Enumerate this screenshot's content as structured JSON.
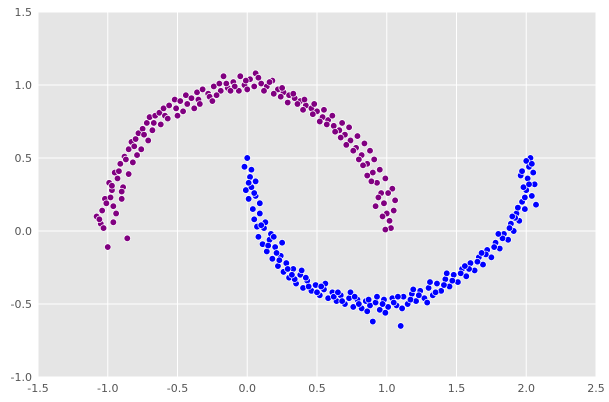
{
  "chart_data": {
    "type": "scatter",
    "title": "",
    "xlabel": "",
    "ylabel": "",
    "xlim": [
      -1.5,
      2.5
    ],
    "ylim": [
      -1.0,
      1.5
    ],
    "grid": true,
    "background": "#e5e5e5",
    "x_ticks": [
      "-1.5",
      "-1.0",
      "-0.5",
      "0.0",
      "0.5",
      "1.0",
      "1.5",
      "2.0",
      "2.5"
    ],
    "y_ticks": [
      "-1.0",
      "-0.5",
      "0.0",
      "0.5",
      "1.0",
      "1.5"
    ],
    "series": [
      {
        "color": "#800080",
        "points": [
          [
            -1.08,
            0.1
          ],
          [
            -1.05,
            0.05
          ],
          [
            -1.04,
            0.14
          ],
          [
            -1.02,
            0.22
          ],
          [
            -1.0,
            -0.11
          ],
          [
            -0.99,
            0.33
          ],
          [
            -0.97,
            0.28
          ],
          [
            -0.96,
            0.17
          ],
          [
            -0.95,
            0.4
          ],
          [
            -0.93,
            0.36
          ],
          [
            -0.91,
            0.46
          ],
          [
            -0.9,
            0.22
          ],
          [
            -0.88,
            0.51
          ],
          [
            -0.86,
            -0.05
          ],
          [
            -0.85,
            0.56
          ],
          [
            -0.83,
            0.61
          ],
          [
            -0.8,
            0.63
          ],
          [
            -0.78,
            0.67
          ],
          [
            -0.75,
            0.7
          ],
          [
            -0.72,
            0.74
          ],
          [
            -0.7,
            0.78
          ],
          [
            -0.66,
            0.79
          ],
          [
            -0.63,
            0.81
          ],
          [
            -0.6,
            0.84
          ],
          [
            -0.56,
            0.86
          ],
          [
            -0.52,
            0.9
          ],
          [
            -0.48,
            0.89
          ],
          [
            -0.44,
            0.93
          ],
          [
            -0.4,
            0.91
          ],
          [
            -0.36,
            0.95
          ],
          [
            -0.32,
            0.97
          ],
          [
            -0.28,
            0.94
          ],
          [
            -0.24,
            0.99
          ],
          [
            -0.2,
            1.01
          ],
          [
            -0.17,
            1.06
          ],
          [
            -0.14,
            0.98
          ],
          [
            -0.1,
            1.02
          ],
          [
            -0.06,
            0.96
          ],
          [
            -0.02,
            1.0
          ],
          [
            0.02,
            1.04
          ],
          [
            0.06,
            1.08
          ],
          [
            0.1,
            1.01
          ],
          [
            0.14,
            0.99
          ],
          [
            0.18,
            1.03
          ],
          [
            0.22,
            0.97
          ],
          [
            0.26,
            0.95
          ],
          [
            0.3,
            0.93
          ],
          [
            0.34,
            0.91
          ],
          [
            0.38,
            0.89
          ],
          [
            0.42,
            0.86
          ],
          [
            0.46,
            0.84
          ],
          [
            0.5,
            0.82
          ],
          [
            0.54,
            0.78
          ],
          [
            0.58,
            0.76
          ],
          [
            0.62,
            0.72
          ],
          [
            0.66,
            0.69
          ],
          [
            0.7,
            0.66
          ],
          [
            0.74,
            0.62
          ],
          [
            0.78,
            0.57
          ],
          [
            0.82,
            0.52
          ],
          [
            0.86,
            0.46
          ],
          [
            0.9,
            0.4
          ],
          [
            0.93,
            0.33
          ],
          [
            0.96,
            0.26
          ],
          [
            0.98,
            0.19
          ],
          [
            1.0,
            0.12
          ],
          [
            1.02,
            0.07
          ],
          [
            1.03,
            0.02
          ],
          [
            1.05,
            0.14
          ],
          [
            1.06,
            0.21
          ],
          [
            1.04,
            0.29
          ],
          [
            0.99,
            0.36
          ],
          [
            0.95,
            0.42
          ],
          [
            0.91,
            0.49
          ],
          [
            0.88,
            0.55
          ],
          [
            0.84,
            0.6
          ],
          [
            0.79,
            0.65
          ],
          [
            0.73,
            0.71
          ],
          [
            0.68,
            0.74
          ],
          [
            0.61,
            0.79
          ],
          [
            0.55,
            0.83
          ],
          [
            0.48,
            0.87
          ],
          [
            0.41,
            0.9
          ],
          [
            0.33,
            0.94
          ],
          [
            0.25,
            0.98
          ],
          [
            0.16,
            1.02
          ],
          [
            0.08,
            1.05
          ],
          [
            -0.01,
            1.03
          ],
          [
            -0.09,
            0.99
          ],
          [
            -0.19,
            0.96
          ],
          [
            -0.27,
            0.92
          ],
          [
            -0.35,
            0.9
          ],
          [
            -0.43,
            0.87
          ],
          [
            -0.51,
            0.84
          ],
          [
            -0.59,
            0.79
          ],
          [
            -0.67,
            0.74
          ],
          [
            -0.74,
            0.66
          ],
          [
            -0.81,
            0.58
          ],
          [
            -0.87,
            0.49
          ],
          [
            -0.92,
            0.41
          ],
          [
            -0.97,
            0.31
          ],
          [
            -1.01,
            0.19
          ],
          [
            -1.06,
            0.08
          ],
          [
            -0.94,
            0.12
          ],
          [
            -0.89,
            0.3
          ],
          [
            -0.82,
            0.47
          ],
          [
            -0.76,
            0.56
          ],
          [
            -0.68,
            0.69
          ],
          [
            -0.57,
            0.77
          ],
          [
            -0.46,
            0.82
          ],
          [
            -0.34,
            0.87
          ],
          [
            -0.22,
            0.93
          ],
          [
            -0.12,
            0.96
          ],
          [
            0.0,
            0.97
          ],
          [
            0.12,
            0.96
          ],
          [
            0.24,
            0.92
          ],
          [
            0.36,
            0.87
          ],
          [
            0.47,
            0.8
          ],
          [
            0.57,
            0.73
          ],
          [
            0.67,
            0.64
          ],
          [
            0.76,
            0.55
          ],
          [
            0.83,
            0.45
          ],
          [
            0.89,
            0.34
          ],
          [
            0.94,
            0.23
          ],
          [
            0.97,
            0.1
          ],
          [
            0.99,
            0.01
          ],
          [
            1.01,
            0.26
          ],
          [
            0.92,
            0.17
          ],
          [
            0.86,
            0.38
          ],
          [
            0.8,
            0.49
          ],
          [
            0.71,
            0.59
          ],
          [
            0.63,
            0.68
          ],
          [
            0.52,
            0.75
          ],
          [
            0.4,
            0.83
          ],
          [
            0.29,
            0.88
          ],
          [
            0.19,
            0.94
          ],
          [
            0.05,
            0.99
          ],
          [
            -0.05,
            1.06
          ],
          [
            -0.15,
            1.01
          ],
          [
            -0.25,
            0.89
          ],
          [
            -0.38,
            0.84
          ],
          [
            -0.5,
            0.79
          ],
          [
            -0.62,
            0.73
          ],
          [
            -0.71,
            0.62
          ],
          [
            -0.79,
            0.52
          ],
          [
            -0.85,
            0.39
          ],
          [
            -0.9,
            0.27
          ],
          [
            -0.96,
            0.06
          ],
          [
            -1.03,
            0.02
          ],
          [
            -0.98,
            0.23
          ]
        ]
      },
      {
        "color": "#0000ff",
        "points": [
          [
            -0.02,
            0.44
          ],
          [
            0.0,
            0.5
          ],
          [
            0.02,
            0.37
          ],
          [
            -0.01,
            0.28
          ],
          [
            0.01,
            0.22
          ],
          [
            0.03,
            0.3
          ],
          [
            0.04,
            0.15
          ],
          [
            0.05,
            0.08
          ],
          [
            0.06,
            0.24
          ],
          [
            0.07,
            0.03
          ],
          [
            0.08,
            -0.04
          ],
          [
            0.09,
            0.12
          ],
          [
            0.11,
            -0.09
          ],
          [
            0.12,
            0.02
          ],
          [
            0.14,
            -0.14
          ],
          [
            0.16,
            -0.06
          ],
          [
            0.18,
            -0.19
          ],
          [
            0.2,
            -0.11
          ],
          [
            0.22,
            -0.24
          ],
          [
            0.24,
            -0.17
          ],
          [
            0.26,
            -0.28
          ],
          [
            0.28,
            -0.22
          ],
          [
            0.3,
            -0.32
          ],
          [
            0.33,
            -0.26
          ],
          [
            0.35,
            -0.36
          ],
          [
            0.38,
            -0.3
          ],
          [
            0.4,
            -0.39
          ],
          [
            0.43,
            -0.34
          ],
          [
            0.46,
            -0.41
          ],
          [
            0.49,
            -0.37
          ],
          [
            0.52,
            -0.44
          ],
          [
            0.55,
            -0.4
          ],
          [
            0.58,
            -0.46
          ],
          [
            0.61,
            -0.42
          ],
          [
            0.64,
            -0.48
          ],
          [
            0.67,
            -0.44
          ],
          [
            0.7,
            -0.5
          ],
          [
            0.73,
            -0.46
          ],
          [
            0.76,
            -0.52
          ],
          [
            0.79,
            -0.47
          ],
          [
            0.82,
            -0.53
          ],
          [
            0.85,
            -0.48
          ],
          [
            0.88,
            -0.51
          ],
          [
            0.9,
            -0.62
          ],
          [
            0.92,
            -0.49
          ],
          [
            0.95,
            -0.54
          ],
          [
            0.98,
            -0.47
          ],
          [
            1.01,
            -0.52
          ],
          [
            1.04,
            -0.46
          ],
          [
            1.07,
            -0.51
          ],
          [
            1.1,
            -0.65
          ],
          [
            1.12,
            -0.45
          ],
          [
            1.15,
            -0.5
          ],
          [
            1.18,
            -0.43
          ],
          [
            1.21,
            -0.48
          ],
          [
            1.24,
            -0.41
          ],
          [
            1.27,
            -0.46
          ],
          [
            1.3,
            -0.39
          ],
          [
            1.33,
            -0.44
          ],
          [
            1.36,
            -0.36
          ],
          [
            1.39,
            -0.41
          ],
          [
            1.42,
            -0.33
          ],
          [
            1.45,
            -0.38
          ],
          [
            1.48,
            -0.3
          ],
          [
            1.51,
            -0.35
          ],
          [
            1.54,
            -0.26
          ],
          [
            1.57,
            -0.31
          ],
          [
            1.6,
            -0.22
          ],
          [
            1.63,
            -0.27
          ],
          [
            1.66,
            -0.18
          ],
          [
            1.69,
            -0.23
          ],
          [
            1.72,
            -0.13
          ],
          [
            1.75,
            -0.18
          ],
          [
            1.78,
            -0.08
          ],
          [
            1.81,
            -0.12
          ],
          [
            1.84,
            -0.02
          ],
          [
            1.87,
            -0.06
          ],
          [
            1.89,
            0.05
          ],
          [
            1.91,
            0.0
          ],
          [
            1.93,
            0.12
          ],
          [
            1.95,
            0.07
          ],
          [
            1.97,
            0.2
          ],
          [
            1.99,
            0.15
          ],
          [
            2.0,
            0.28
          ],
          [
            2.01,
            0.36
          ],
          [
            2.02,
            0.44
          ],
          [
            2.03,
            0.5
          ],
          [
            2.05,
            0.4
          ],
          [
            2.06,
            0.32
          ],
          [
            2.07,
            0.18
          ],
          [
            2.04,
            0.24
          ],
          [
            1.98,
            0.3
          ],
          [
            1.96,
            0.38
          ],
          [
            2.0,
            0.48
          ],
          [
            0.03,
            0.42
          ],
          [
            0.06,
            0.34
          ],
          [
            0.09,
            0.19
          ],
          [
            0.13,
            0.06
          ],
          [
            0.17,
            -0.02
          ],
          [
            0.21,
            -0.15
          ],
          [
            0.25,
            -0.08
          ],
          [
            0.29,
            -0.26
          ],
          [
            0.34,
            -0.33
          ],
          [
            0.39,
            -0.27
          ],
          [
            0.44,
            -0.38
          ],
          [
            0.5,
            -0.42
          ],
          [
            0.56,
            -0.36
          ],
          [
            0.62,
            -0.45
          ],
          [
            0.68,
            -0.48
          ],
          [
            0.74,
            -0.42
          ],
          [
            0.8,
            -0.5
          ],
          [
            0.86,
            -0.55
          ],
          [
            0.93,
            -0.45
          ],
          [
            0.99,
            -0.56
          ],
          [
            1.05,
            -0.49
          ],
          [
            1.11,
            -0.53
          ],
          [
            1.17,
            -0.47
          ],
          [
            1.23,
            -0.44
          ],
          [
            1.29,
            -0.49
          ],
          [
            1.35,
            -0.42
          ],
          [
            1.41,
            -0.37
          ],
          [
            1.47,
            -0.34
          ],
          [
            1.53,
            -0.29
          ],
          [
            1.59,
            -0.26
          ],
          [
            1.65,
            -0.21
          ],
          [
            1.71,
            -0.16
          ],
          [
            1.77,
            -0.11
          ],
          [
            1.83,
            -0.05
          ],
          [
            1.88,
            0.02
          ],
          [
            1.92,
            0.09
          ],
          [
            1.94,
            0.16
          ],
          [
            1.99,
            0.23
          ],
          [
            2.02,
            0.32
          ],
          [
            1.97,
            0.41
          ],
          [
            2.04,
            0.46
          ],
          [
            0.01,
            0.33
          ],
          [
            0.05,
            0.26
          ],
          [
            0.1,
            0.04
          ],
          [
            0.15,
            -0.1
          ],
          [
            0.19,
            -0.04
          ],
          [
            0.23,
            -0.2
          ],
          [
            0.32,
            -0.3
          ],
          [
            0.42,
            -0.32
          ],
          [
            0.53,
            -0.38
          ],
          [
            0.65,
            -0.42
          ],
          [
            0.77,
            -0.45
          ],
          [
            0.87,
            -0.47
          ],
          [
            0.97,
            -0.5
          ],
          [
            1.08,
            -0.45
          ],
          [
            1.19,
            -0.4
          ],
          [
            1.31,
            -0.35
          ],
          [
            1.43,
            -0.29
          ],
          [
            1.56,
            -0.24
          ],
          [
            1.68,
            -0.15
          ],
          [
            1.8,
            -0.02
          ],
          [
            1.9,
            0.1
          ]
        ]
      }
    ]
  }
}
